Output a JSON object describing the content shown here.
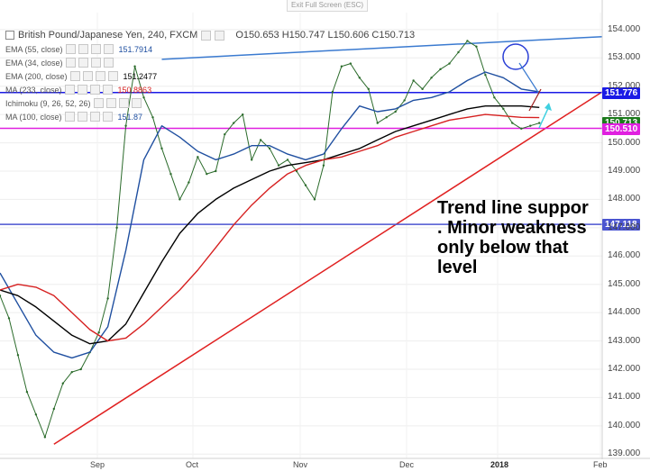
{
  "topbar": {
    "exit_label": "Exit Full Screen (ESC)"
  },
  "header": {
    "symbol": "British Pound/Japanese Yen, 240, FXCM",
    "ohlc": "O150.653 H150.747 L150.606 C150.713"
  },
  "indicators": [
    {
      "name": "EMA (55, close)",
      "value": "151.7914",
      "color": "#1f4fa0"
    },
    {
      "name": "EMA (34, close)",
      "value": "",
      "color": "#3fb5d6"
    },
    {
      "name": "EMA (200, close)",
      "value": "151.2477",
      "color": "#000000"
    },
    {
      "name": "MA (233, close)",
      "value": "150.8863",
      "color": "#d62020"
    },
    {
      "name": "Ichimoku (9, 26, 52, 26)",
      "value": "",
      "color": "#3fb5d6"
    },
    {
      "name": "MA (100, close)",
      "value": "151.87",
      "color": "#1f4fa0"
    }
  ],
  "annotation": {
    "text": "Trend line suppor\n. Minor weakness\nonly below that\nlevel"
  },
  "price_tags": [
    {
      "label": "151.776",
      "price": 151.776,
      "color": "#1a1ae6"
    },
    {
      "label": "150.713",
      "price": 150.713,
      "color": "#1c7a1c"
    },
    {
      "label": "150.510",
      "price": 150.51,
      "color": "#e020e0"
    },
    {
      "label": "147.118",
      "price": 147.118,
      "color": "#4b55d0"
    }
  ],
  "chart_data": {
    "type": "line",
    "title": "British Pound/Japanese Yen, 240, FXCM",
    "ylim": [
      138.85,
      154.6
    ],
    "y_ticks": [
      "139.000",
      "140.000",
      "141.000",
      "142.000",
      "143.000",
      "144.000",
      "145.000",
      "146.000",
      "147.000",
      "148.000",
      "149.000",
      "150.000",
      "151.000",
      "152.000",
      "153.000",
      "154.000"
    ],
    "x_ticks": [
      "Sep",
      "Oct",
      "Nov",
      "Dec",
      "2018",
      "Feb"
    ],
    "grid": true,
    "series": [
      {
        "name": "Price",
        "color": "#2b6b2b",
        "x": [
          0,
          10,
          20,
          30,
          40,
          50,
          60,
          70,
          80,
          90,
          100,
          110,
          120,
          130,
          140,
          150,
          160,
          170,
          180,
          190,
          200,
          210,
          220,
          230,
          240,
          250,
          260,
          270,
          280,
          290,
          300,
          310,
          320,
          330,
          340,
          350,
          360,
          370,
          380,
          390,
          400,
          410,
          420,
          430,
          440,
          450,
          460,
          470,
          480,
          490,
          500,
          510,
          520,
          530,
          540,
          550,
          560,
          570,
          580,
          590,
          600
        ],
        "y": [
          144.6,
          143.8,
          142.5,
          141.2,
          140.4,
          139.6,
          140.6,
          141.5,
          141.9,
          142.0,
          142.6,
          143.3,
          144.5,
          147.0,
          150.6,
          152.7,
          151.6,
          150.9,
          149.8,
          148.9,
          148.0,
          148.6,
          149.5,
          148.9,
          149.0,
          150.3,
          150.7,
          151.0,
          149.4,
          150.1,
          149.8,
          149.2,
          149.4,
          149.0,
          148.5,
          148.0,
          149.2,
          151.8,
          152.7,
          152.8,
          152.3,
          151.9,
          150.7,
          150.9,
          151.1,
          151.5,
          152.2,
          151.9,
          152.3,
          152.6,
          152.8,
          153.2,
          153.6,
          153.4,
          152.4,
          151.6,
          151.2,
          150.7,
          150.5,
          150.6,
          150.7
        ]
      },
      {
        "name": "EMA (55, close)",
        "color": "#1f4fa0",
        "x": [
          0,
          20,
          40,
          60,
          80,
          100,
          120,
          140,
          160,
          180,
          200,
          220,
          240,
          260,
          280,
          300,
          320,
          340,
          360,
          380,
          400,
          420,
          440,
          460,
          480,
          500,
          520,
          540,
          560,
          580,
          600
        ],
        "y": [
          145.4,
          144.3,
          143.2,
          142.6,
          142.4,
          142.6,
          143.5,
          146.2,
          149.4,
          150.6,
          150.2,
          149.7,
          149.4,
          149.6,
          149.9,
          149.9,
          149.6,
          149.4,
          149.6,
          150.5,
          151.3,
          151.1,
          151.2,
          151.5,
          151.6,
          151.8,
          152.2,
          152.5,
          152.3,
          151.9,
          151.8
        ]
      },
      {
        "name": "EMA (200, close)",
        "color": "#000000",
        "x": [
          0,
          20,
          40,
          60,
          80,
          100,
          120,
          140,
          160,
          180,
          200,
          220,
          240,
          260,
          280,
          300,
          320,
          340,
          360,
          380,
          400,
          420,
          440,
          460,
          480,
          500,
          520,
          540,
          560,
          580,
          600
        ],
        "y": [
          144.8,
          144.6,
          144.2,
          143.7,
          143.2,
          142.9,
          143.0,
          143.6,
          144.7,
          145.8,
          146.8,
          147.5,
          148.0,
          148.4,
          148.7,
          149.0,
          149.2,
          149.3,
          149.4,
          149.6,
          149.8,
          150.1,
          150.4,
          150.6,
          150.8,
          151.0,
          151.2,
          151.3,
          151.3,
          151.3,
          151.25
        ]
      },
      {
        "name": "MA (233, close)",
        "color": "#d62020",
        "x": [
          0,
          20,
          40,
          60,
          80,
          100,
          120,
          140,
          160,
          180,
          200,
          220,
          240,
          260,
          280,
          300,
          320,
          340,
          360,
          380,
          400,
          420,
          440,
          460,
          480,
          500,
          520,
          540,
          560,
          580,
          600
        ],
        "y": [
          144.8,
          145.0,
          144.9,
          144.6,
          144.0,
          143.4,
          143.0,
          143.1,
          143.6,
          144.2,
          144.8,
          145.5,
          146.3,
          147.1,
          147.8,
          148.4,
          148.9,
          149.2,
          149.4,
          149.5,
          149.7,
          149.9,
          150.2,
          150.4,
          150.6,
          150.8,
          150.9,
          151.0,
          150.95,
          150.9,
          150.89
        ]
      }
    ],
    "drawings": [
      {
        "name": "rising-trend-line",
        "color": "#e02020",
        "from": [
          60,
          139.35
        ],
        "to": [
          670,
          151.8
        ]
      },
      {
        "name": "upper-channel-line",
        "color": "#3a7ad0",
        "from": [
          180,
          152.95
        ],
        "to": [
          670,
          153.75
        ]
      },
      {
        "name": "resistance-line",
        "color": "#1a1ae6",
        "price": 151.776
      },
      {
        "name": "support-line",
        "color": "#e020e0",
        "price": 150.51
      },
      {
        "name": "lower-level-line",
        "color": "#4b55d0",
        "price": 147.118
      }
    ]
  }
}
